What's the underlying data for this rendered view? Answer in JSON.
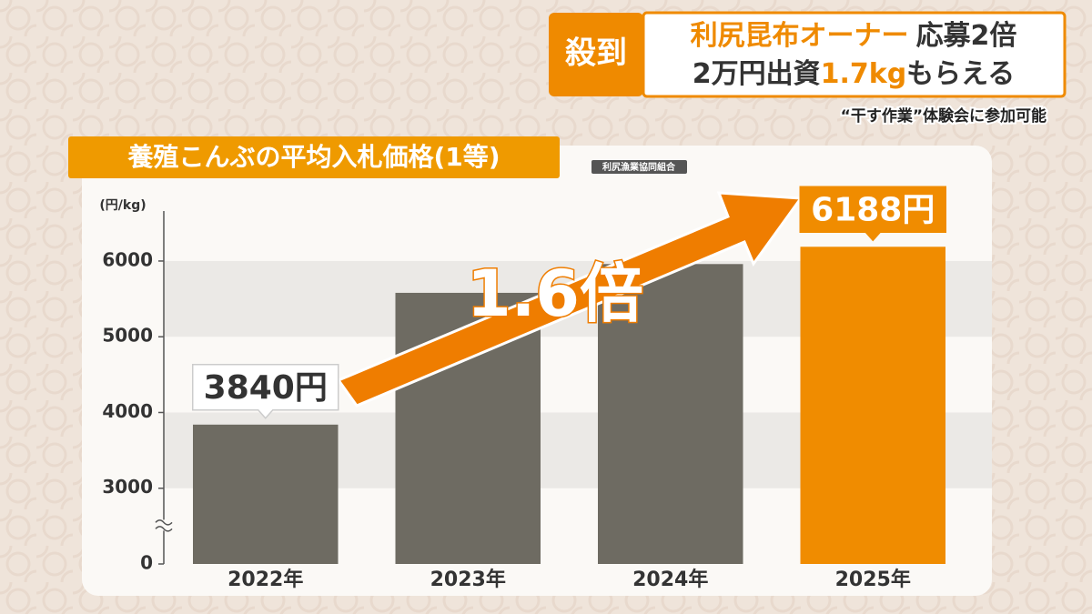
{
  "header": {
    "tag": "殺到",
    "line1": [
      "利尻昆布オーナー",
      "応募2倍"
    ],
    "line2": [
      "2万円出資",
      "1.7kg",
      "もらえる"
    ],
    "caption": "“干す作業”体験会に参加可能"
  },
  "chart_data": {
    "type": "bar",
    "title": "養殖こんぶの平均入札価格(1等)",
    "source": "利尻漁業協同組合",
    "y_label": "(円/kg)",
    "annotation": "1.6倍",
    "categories": [
      "2022年",
      "2023年",
      "2024年",
      "2025年"
    ],
    "values": [
      3840,
      5580,
      5960,
      6188
    ],
    "value_labels": [
      "3840円",
      null,
      null,
      "6188円"
    ],
    "colors": [
      "#6e6b62",
      "#6e6b62",
      "#6e6b62",
      "#f08c00"
    ],
    "ylim": [
      0,
      6600
    ],
    "yticks": [
      0,
      3000,
      4000,
      5000,
      6000
    ],
    "axis_break": true,
    "grid": true
  }
}
